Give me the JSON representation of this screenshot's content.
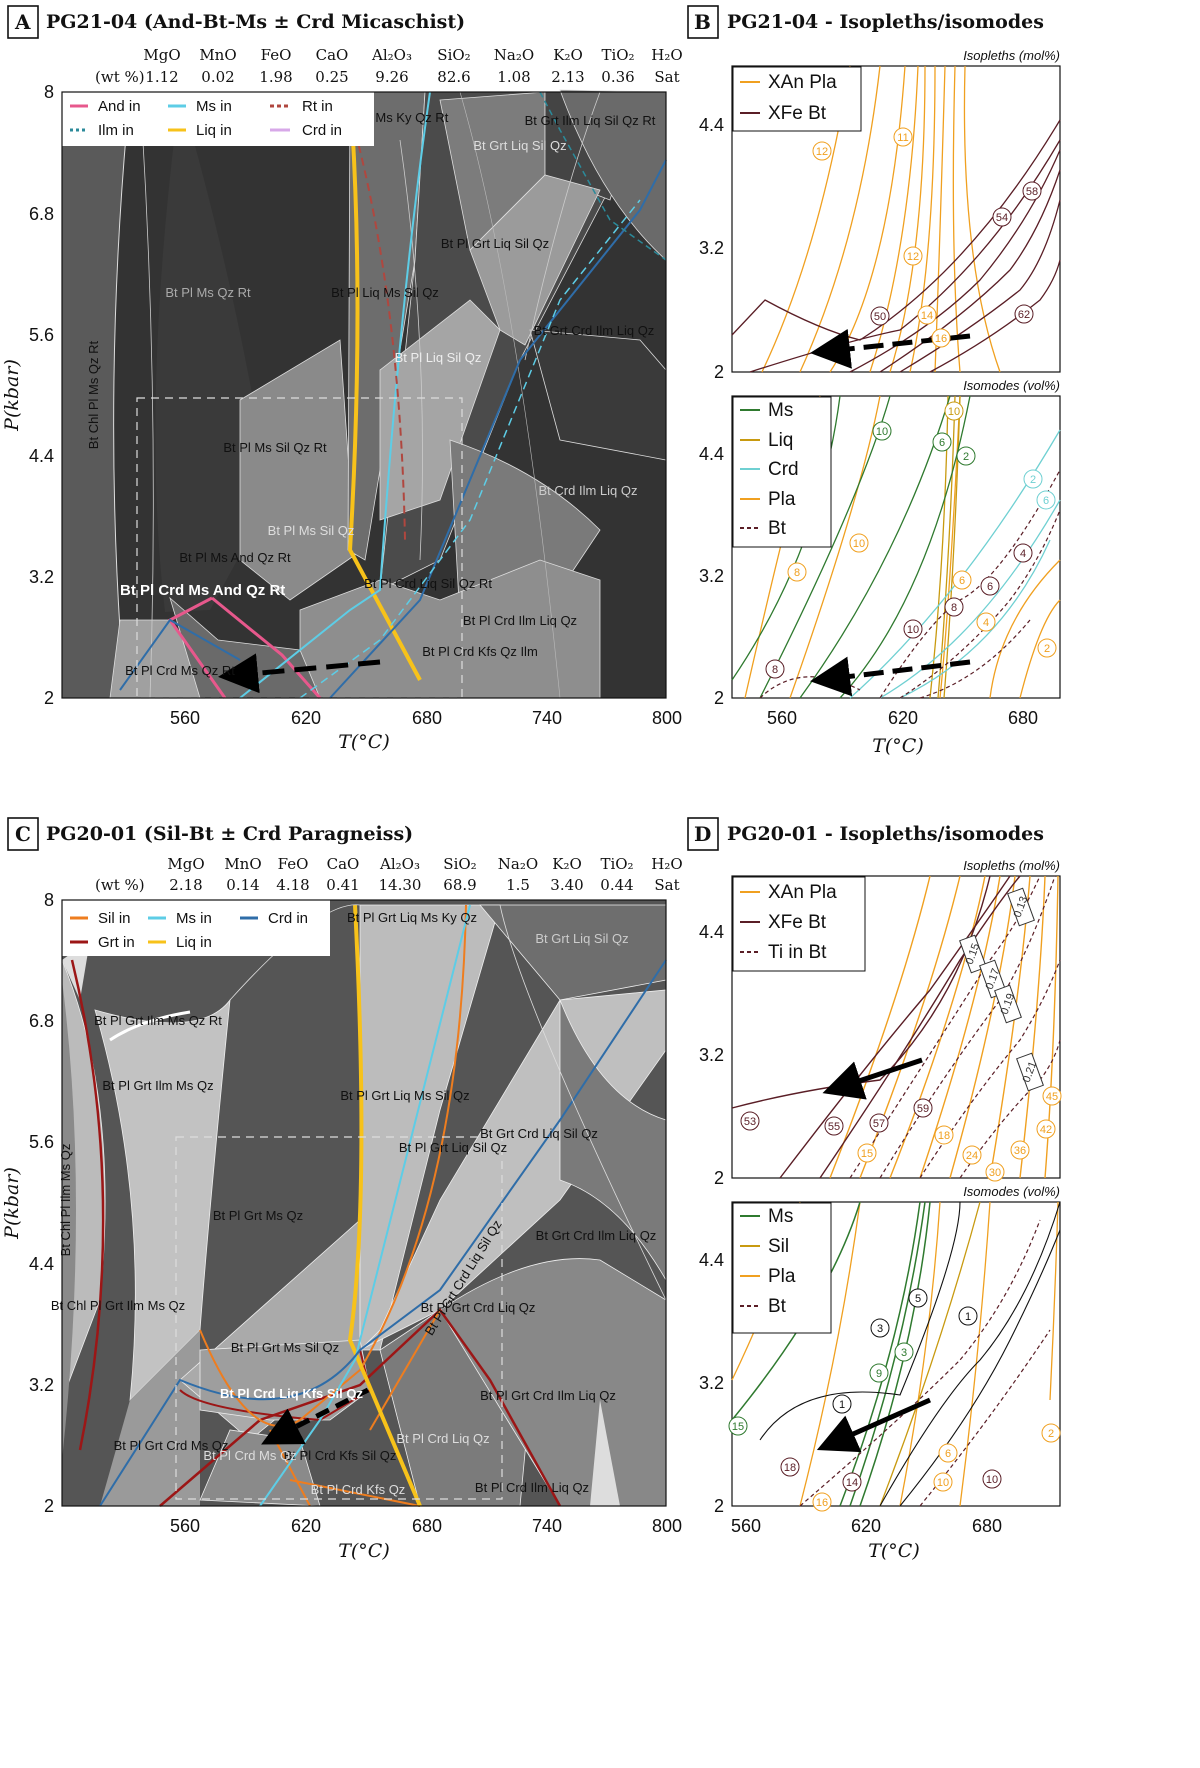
{
  "panelA": {
    "letter": "A",
    "title": "PG21-04 (And-Bt-Ms ± Crd Micaschist)",
    "wt_label": "(wt %)",
    "oxides": [
      "MgO",
      "MnO",
      "FeO",
      "CaO",
      "Al₂O₃",
      "SiO₂",
      "Na₂O",
      "K₂O",
      "TiO₂",
      "H₂O"
    ],
    "values": [
      "1.12",
      "0.02",
      "1.98",
      "0.25",
      "9.26",
      "82.6",
      "1.08",
      "2.13",
      "0.36",
      "Sat"
    ],
    "y_ticks": [
      "8",
      "6.8",
      "5.6",
      "4.4",
      "3.2",
      "2"
    ],
    "x_ticks": [
      "560",
      "620",
      "680",
      "740",
      "800"
    ],
    "xlabel": "T(°C)",
    "ylabel": "P(kbar)",
    "legend": [
      "And in",
      "Ilm in",
      "Ms in",
      "Liq in",
      "Rt in",
      "Crd in"
    ],
    "fields": [
      "Bt Pl Grt Liq Ms Ky Qz Rt",
      "Bt Grt Liq Sil Qz",
      "Bt Grt Ilm Liq Sil Qz Rt",
      "Bt Pl Grt Liq Sil Qz",
      "Bt Pl Ms Qz Rt",
      "Bt Pl Liq Ms Sil Qz",
      "Bt Grt Crd Ilm Liq Qz",
      "Bt Pl Liq Sil Qz",
      "Bt Chl Pl Ms Qz Rt",
      "Bt Pl Ms Sil Qz Rt",
      "Bt Crd Ilm Liq Qz",
      "Bt Pl Ms Sil Qz",
      "Bt Pl Ms And Qz Rt",
      "Bt Pl Crd Liq Sil Qz Rt",
      "Bt Pl Crd Ms And Qz Rt",
      "Bt Pl Crd Ilm Liq Qz",
      "Bt Pl Crd Kfs Qz Ilm",
      "Bt Pl Crd Ms Qz Rt"
    ]
  },
  "panelB": {
    "letter": "B",
    "title": "PG21-04 - Isopleths/isomodes",
    "note_top": "Isopleths (mol%)",
    "note_bottom": "Isomodes (vol%)",
    "legend_top": [
      "XAn Pla",
      "XFe Bt"
    ],
    "legend_bottom": [
      "Ms",
      "Liq",
      "Crd",
      "Pla",
      "Bt"
    ],
    "y_ticks_top": [
      "4.4",
      "3.2",
      "2"
    ],
    "y_ticks_bottom": [
      "4.4",
      "3.2",
      "2"
    ],
    "x_ticks": [
      "560",
      "620",
      "680"
    ],
    "xlabel": "T(°C)",
    "labels_top": [
      "12",
      "11",
      "12",
      "14",
      "16",
      "50",
      "54",
      "58",
      "62"
    ],
    "labels_bottom": [
      "10",
      "10",
      "6",
      "2",
      "8",
      "10",
      "6",
      "6",
      "8",
      "10",
      "4",
      "4",
      "2",
      "6",
      "2",
      "8"
    ]
  },
  "panelC": {
    "letter": "C",
    "title": "PG20-01 (Sil-Bt ± Crd Paragneiss)",
    "wt_label": "(wt %)",
    "oxides": [
      "MgO",
      "MnO",
      "FeO",
      "CaO",
      "Al₂O₃",
      "SiO₂",
      "Na₂O",
      "K₂O",
      "TiO₂",
      "H₂O"
    ],
    "values": [
      "2.18",
      "0.14",
      "4.18",
      "0.41",
      "14.30",
      "68.9",
      "1.5",
      "3.40",
      "0.44",
      "Sat"
    ],
    "y_ticks": [
      "8",
      "6.8",
      "5.6",
      "4.4",
      "3.2",
      "2"
    ],
    "x_ticks": [
      "560",
      "620",
      "680",
      "740",
      "800"
    ],
    "xlabel": "T(°C)",
    "ylabel": "P(kbar)",
    "legend": [
      "Sil in",
      "Grt in",
      "Ms in",
      "Liq in",
      "Crd in"
    ],
    "fields": [
      "Bt Pl Grt Liq Ms Ky Qz",
      "Bt Grt Liq Sil Qz",
      "Bt Pl Grt Ilm Ms Qz Rt",
      "Bt Pl Grt Ilm Ms Qz",
      "Bt Pl Grt Liq Ms Sil Qz",
      "Bt Grt Crd Liq Sil Qz",
      "Bt Pl Grt Liq Sil Qz",
      "Bt Pl Grt Ms Qz",
      "Bt Grt Crd Ilm Liq Qz",
      "Bt Chl Pl Ilm Ms Qz",
      "Bt Pl Grt Crd Liq Sil Qz",
      "Bt Chl Pl Grt Ilm Ms Qz",
      "Bt Pl Grt Crd Liq Qz",
      "Bt Pl Grt Ms Sil Qz",
      "Bt Pl Crd Liq Kfs Sil Qz",
      "Bt Pl Grt Crd Ilm Liq Qz",
      "Bt Pl Crd Liq Qz",
      "Bt Pl Crd Kfs Sil Qz",
      "Bt Pl Grt Crd Ms Qz",
      "Bt Pl Crd Ms Qz",
      "Bt Pl Crd Kfs Qz",
      "Bt Pl Crd Ilm Liq Qz"
    ]
  },
  "panelD": {
    "letter": "D",
    "title": "PG20-01 - Isopleths/isomodes",
    "note_top": "Isopleths (mol%)",
    "note_bottom": "Isomodes (vol%)",
    "legend_top": [
      "XAn Pla",
      "XFe Bt",
      "Ti in Bt"
    ],
    "legend_bottom": [
      "Ms",
      "Sil",
      "Pla",
      "Bt"
    ],
    "y_ticks_top": [
      "4.4",
      "3.2",
      "2"
    ],
    "y_ticks_bottom": [
      "4.4",
      "3.2",
      "2"
    ],
    "x_ticks": [
      "560",
      "620",
      "680"
    ],
    "xlabel": "T(°C)",
    "labels_top": [
      "53",
      "55",
      "57",
      "59",
      "15",
      "18",
      "24",
      "30",
      "36",
      "42",
      "45",
      "0.13",
      "0.15",
      "0.17",
      "0.19",
      "0.21"
    ],
    "labels_bottom": [
      "14",
      "15",
      "9",
      "3",
      "3",
      "5",
      "1",
      "1",
      "18",
      "14",
      "16",
      "6",
      "10",
      "10",
      "2"
    ]
  },
  "colors": {
    "and_in": "#e7588c",
    "ilm_in": "#2b8a9a",
    "ms_in": "#5dcde6",
    "liq_in": "#f7c21a",
    "rt_in": "#b0473f",
    "crd_in": "#d7a8e8",
    "sil_in": "#ee7d1f",
    "grt_in": "#9c1616",
    "crd_in_c": "#2f6da8",
    "pla": "#f0a020",
    "bt": "#5a1e26",
    "ms_iso": "#2f7a2f",
    "liq_iso": "#c89a10",
    "crd_iso": "#6fd0d2"
  }
}
